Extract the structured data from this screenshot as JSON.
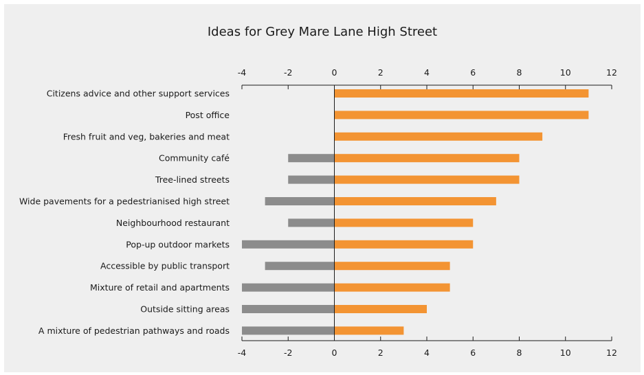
{
  "chart_data": {
    "type": "bar",
    "orientation": "horizontal",
    "title": "Ideas for Grey Mare Lane High Street",
    "xlim": [
      -4,
      12
    ],
    "xticks": [
      -4,
      -2,
      0,
      2,
      4,
      6,
      8,
      10,
      12
    ],
    "categories": [
      "Citizens advice and other support services",
      "Post office",
      "Fresh fruit and veg, bakeries and meat",
      "Community café",
      "Tree-lined streets",
      "Wide pavements for a pedestrianised high street",
      "Neighbourhood restaurant",
      "Pop-up outdoor markets",
      "Accessible by public transport",
      "Mixture of retail and apartments",
      "Outside sitting areas",
      "A mixture of pedestrian pathways and roads"
    ],
    "series": [
      {
        "color": "#f39433",
        "values": [
          11,
          11,
          9,
          8,
          8,
          7,
          6,
          6,
          5,
          5,
          4,
          3
        ]
      },
      {
        "color": "#8c8c8c",
        "values": [
          0,
          0,
          0,
          -2,
          -2,
          -3,
          -2,
          -4,
          -3,
          -4,
          -4,
          -4
        ]
      }
    ],
    "grid": false,
    "legend": "none",
    "axis_positions": [
      "top",
      "bottom"
    ]
  }
}
